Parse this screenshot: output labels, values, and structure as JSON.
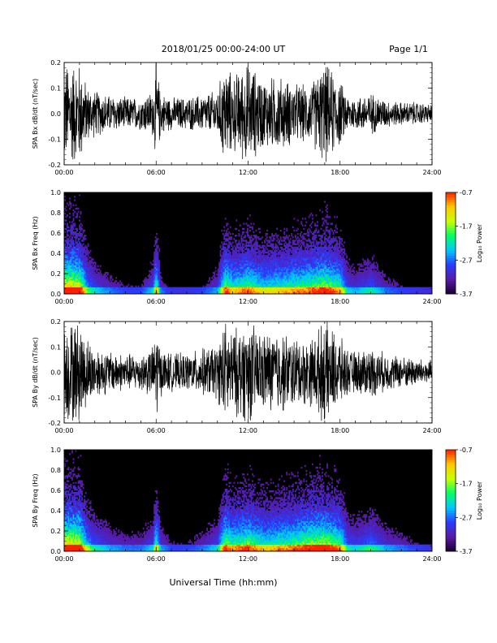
{
  "header": {
    "title": "2018/01/25  00:00-24:00 UT",
    "page": "Page 1/1"
  },
  "footer": {
    "xlabel": "Universal Time (hh:mm)"
  },
  "colors": {
    "trace": "#000000",
    "spectrogram_background": "#000000",
    "colormap": [
      "#1a0033",
      "#5a1aa6",
      "#2a3cff",
      "#00c8ff",
      "#00ff64",
      "#c8ff00",
      "#ffc800",
      "#ff2000"
    ]
  },
  "chart_data": [
    {
      "type": "line",
      "ylabel": "SPA Bx dB/dt (nT/sec)",
      "xlim": [
        0,
        24
      ],
      "ylim": [
        -0.2,
        0.2
      ],
      "x_ticks": [
        "00:00",
        "06:00",
        "12:00",
        "18:00",
        "24:00"
      ],
      "y_ticks": [
        "0.2",
        "0.1",
        "0.0",
        "-0.1",
        "-0.2"
      ],
      "grid": false,
      "envelope_hours": [
        0,
        0.5,
        1,
        1.5,
        2,
        3,
        4,
        5,
        5.8,
        6,
        6.3,
        7,
        8,
        9,
        10,
        10.5,
        11,
        12,
        13,
        14,
        15,
        16,
        17,
        18,
        18.5,
        19,
        20,
        21,
        22,
        23,
        24
      ],
      "envelope_amplitude": [
        0.22,
        0.22,
        0.22,
        0.12,
        0.1,
        0.08,
        0.07,
        0.07,
        0.1,
        0.22,
        0.09,
        0.07,
        0.07,
        0.08,
        0.1,
        0.22,
        0.16,
        0.22,
        0.15,
        0.16,
        0.13,
        0.12,
        0.22,
        0.14,
        0.08,
        0.07,
        0.09,
        0.06,
        0.05,
        0.05,
        0.04
      ]
    },
    {
      "type": "heatmap",
      "ylabel": "SPA Bx Freq (Hz)",
      "xlim": [
        0,
        24
      ],
      "ylim": [
        0,
        1.0
      ],
      "x_ticks": [
        "00:00",
        "06:00",
        "12:00",
        "18:00",
        "24:00"
      ],
      "y_ticks": [
        "1.0",
        "0.8",
        "0.6",
        "0.4",
        "0.2",
        "0.0"
      ],
      "colorbar": {
        "label": "Log₁₀ Power",
        "ticks": [
          "-0.7",
          "-1.7",
          "-2.7",
          "-3.7"
        ],
        "range": [
          -3.7,
          -0.7
        ]
      },
      "activity_hours": [
        0,
        0.5,
        1,
        1.5,
        2,
        3,
        4,
        5,
        5.8,
        6,
        6.3,
        7,
        8,
        9,
        10,
        10.5,
        11,
        12,
        13,
        14,
        15,
        16,
        17,
        18,
        18.5,
        19,
        20,
        21,
        22,
        23,
        24
      ],
      "activity_level": [
        0.95,
        0.95,
        0.9,
        0.45,
        0.3,
        0.2,
        0.15,
        0.15,
        0.3,
        0.7,
        0.2,
        0.12,
        0.12,
        0.15,
        0.25,
        0.75,
        0.6,
        0.7,
        0.55,
        0.6,
        0.65,
        0.7,
        0.8,
        0.65,
        0.3,
        0.25,
        0.35,
        0.2,
        0.15,
        0.12,
        0.1
      ]
    },
    {
      "type": "line",
      "ylabel": "SPA By dB/dt (nT/sec)",
      "xlim": [
        0,
        24
      ],
      "ylim": [
        -0.2,
        0.2
      ],
      "x_ticks": [
        "00:00",
        "06:00",
        "12:00",
        "18:00",
        "24:00"
      ],
      "y_ticks": [
        "0.2",
        "0.1",
        "0.0",
        "-0.1",
        "-0.2"
      ],
      "grid": false,
      "envelope_hours": [
        0,
        0.5,
        1,
        1.5,
        2,
        3,
        4,
        5,
        5.8,
        6,
        6.3,
        7,
        8,
        9,
        10,
        10.5,
        11,
        12,
        13,
        14,
        15,
        16,
        17,
        18,
        18.5,
        19,
        20,
        21,
        22,
        23,
        24
      ],
      "envelope_amplitude": [
        0.22,
        0.22,
        0.22,
        0.15,
        0.11,
        0.09,
        0.08,
        0.08,
        0.11,
        0.22,
        0.1,
        0.08,
        0.08,
        0.1,
        0.12,
        0.22,
        0.18,
        0.22,
        0.17,
        0.18,
        0.15,
        0.14,
        0.22,
        0.15,
        0.1,
        0.09,
        0.11,
        0.08,
        0.07,
        0.06,
        0.05
      ]
    },
    {
      "type": "heatmap",
      "ylabel": "SPA By Freq (Hz)",
      "xlim": [
        0,
        24
      ],
      "ylim": [
        0,
        1.0
      ],
      "x_ticks": [
        "00:00",
        "06:00",
        "12:00",
        "18:00",
        "24:00"
      ],
      "y_ticks": [
        "1.0",
        "0.8",
        "0.6",
        "0.4",
        "0.2",
        "0.0"
      ],
      "colorbar": {
        "label": "Log₁₀ Power",
        "ticks": [
          "-0.7",
          "-1.7",
          "-2.7",
          "-3.7"
        ],
        "range": [
          -3.7,
          -0.7
        ]
      },
      "activity_hours": [
        0,
        0.5,
        1,
        1.5,
        2,
        3,
        4,
        5,
        5.8,
        6,
        6.3,
        7,
        8,
        9,
        10,
        10.5,
        11,
        12,
        13,
        14,
        15,
        16,
        17,
        18,
        18.5,
        19,
        20,
        21,
        22,
        23,
        24
      ],
      "activity_level": [
        0.95,
        0.95,
        0.9,
        0.5,
        0.35,
        0.25,
        0.2,
        0.2,
        0.3,
        0.7,
        0.25,
        0.15,
        0.15,
        0.2,
        0.3,
        0.8,
        0.65,
        0.75,
        0.6,
        0.65,
        0.7,
        0.8,
        0.85,
        0.7,
        0.35,
        0.3,
        0.4,
        0.25,
        0.2,
        0.15,
        0.12
      ]
    }
  ]
}
